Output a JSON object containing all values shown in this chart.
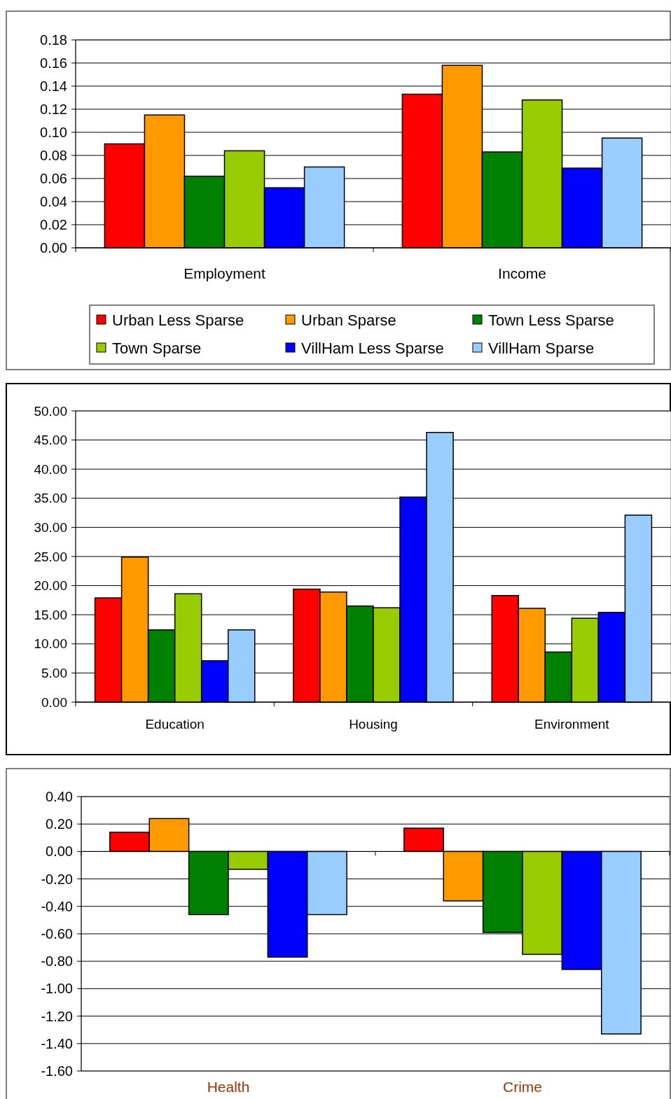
{
  "chart_data": [
    {
      "type": "bar",
      "categories": [
        "Employment",
        "Income"
      ],
      "series": [
        {
          "name": "Urban Less Sparse",
          "color": "#ff0000",
          "values": [
            0.09,
            0.133
          ]
        },
        {
          "name": "Urban Sparse",
          "color": "#ff9900",
          "values": [
            0.115,
            0.158
          ]
        },
        {
          "name": "Town Less Sparse",
          "color": "#008000",
          "values": [
            0.062,
            0.083
          ]
        },
        {
          "name": "Town Sparse",
          "color": "#99cc00",
          "values": [
            0.084,
            0.128
          ]
        },
        {
          "name": "VillHam Less Sparse",
          "color": "#0000ff",
          "values": [
            0.052,
            0.069
          ]
        },
        {
          "name": "VillHam Sparse",
          "color": "#99ccff",
          "values": [
            0.07,
            0.095
          ]
        }
      ],
      "ylim": [
        0,
        0.18
      ],
      "yticks": [
        {
          "value": 0,
          "label": "0.00"
        },
        {
          "value": 0.02,
          "label": "0.02"
        },
        {
          "value": 0.04,
          "label": "0.04"
        },
        {
          "value": 0.06,
          "label": "0.06"
        },
        {
          "value": 0.08,
          "label": "0.08"
        },
        {
          "value": 0.1,
          "label": "0.10"
        },
        {
          "value": 0.12,
          "label": "0.12"
        },
        {
          "value": 0.14,
          "label": "0.14"
        },
        {
          "value": 0.16,
          "label": "0.16"
        },
        {
          "value": 0.18,
          "label": "0.18"
        }
      ],
      "grid": "y",
      "legend": "bottom"
    },
    {
      "type": "bar",
      "categories": [
        "Education",
        "Housing",
        "Environment"
      ],
      "series": [
        {
          "color": "#ff0000",
          "values": [
            17.9,
            19.4,
            18.3
          ]
        },
        {
          "color": "#ff9900",
          "values": [
            24.9,
            18.9,
            16.1
          ]
        },
        {
          "color": "#008000",
          "values": [
            12.4,
            16.5,
            8.6
          ]
        },
        {
          "color": "#99cc00",
          "values": [
            18.6,
            16.2,
            14.4
          ]
        },
        {
          "color": "#0000ff",
          "values": [
            7.1,
            35.2,
            15.4
          ]
        },
        {
          "color": "#99ccff",
          "values": [
            12.4,
            46.3,
            32.1
          ]
        }
      ],
      "ylim": [
        0,
        50
      ],
      "yticks": [
        {
          "value": 0,
          "label": "0.00"
        },
        {
          "value": 5,
          "label": "5.00"
        },
        {
          "value": 10,
          "label": "10.00"
        },
        {
          "value": 15,
          "label": "15.00"
        },
        {
          "value": 20,
          "label": "20.00"
        },
        {
          "value": 25,
          "label": "25.00"
        },
        {
          "value": 30,
          "label": "30.00"
        },
        {
          "value": 35,
          "label": "35.00"
        },
        {
          "value": 40,
          "label": "40.00"
        },
        {
          "value": 45,
          "label": "45.00"
        },
        {
          "value": 50,
          "label": "50.00"
        }
      ],
      "grid": "y"
    },
    {
      "type": "bar",
      "categories": [
        "Health",
        "Crime"
      ],
      "series": [
        {
          "color": "#ff0000",
          "values": [
            0.14,
            0.17
          ]
        },
        {
          "color": "#ff9900",
          "values": [
            0.24,
            -0.36
          ]
        },
        {
          "color": "#008000",
          "values": [
            -0.46,
            -0.59
          ]
        },
        {
          "color": "#99cc00",
          "values": [
            -0.13,
            -0.75
          ]
        },
        {
          "color": "#0000ff",
          "values": [
            -0.77,
            -0.86
          ]
        },
        {
          "color": "#99ccff",
          "values": [
            -0.46,
            -1.33
          ]
        }
      ],
      "ylim": [
        -1.6,
        0.4
      ],
      "yticks": [
        {
          "value": -1.6,
          "label": "-1.60"
        },
        {
          "value": -1.4,
          "label": "-1.40"
        },
        {
          "value": -1.2,
          "label": "-1.20"
        },
        {
          "value": -1,
          "label": "-1.00"
        },
        {
          "value": -0.8,
          "label": "-0.80"
        },
        {
          "value": -0.6,
          "label": "-0.60"
        },
        {
          "value": -0.4,
          "label": "-0.40"
        },
        {
          "value": -0.2,
          "label": "-0.20"
        },
        {
          "value": 0,
          "label": "0.00"
        },
        {
          "value": 0.2,
          "label": "0.20"
        },
        {
          "value": 0.4,
          "label": "0.40"
        }
      ],
      "grid": "y"
    }
  ]
}
